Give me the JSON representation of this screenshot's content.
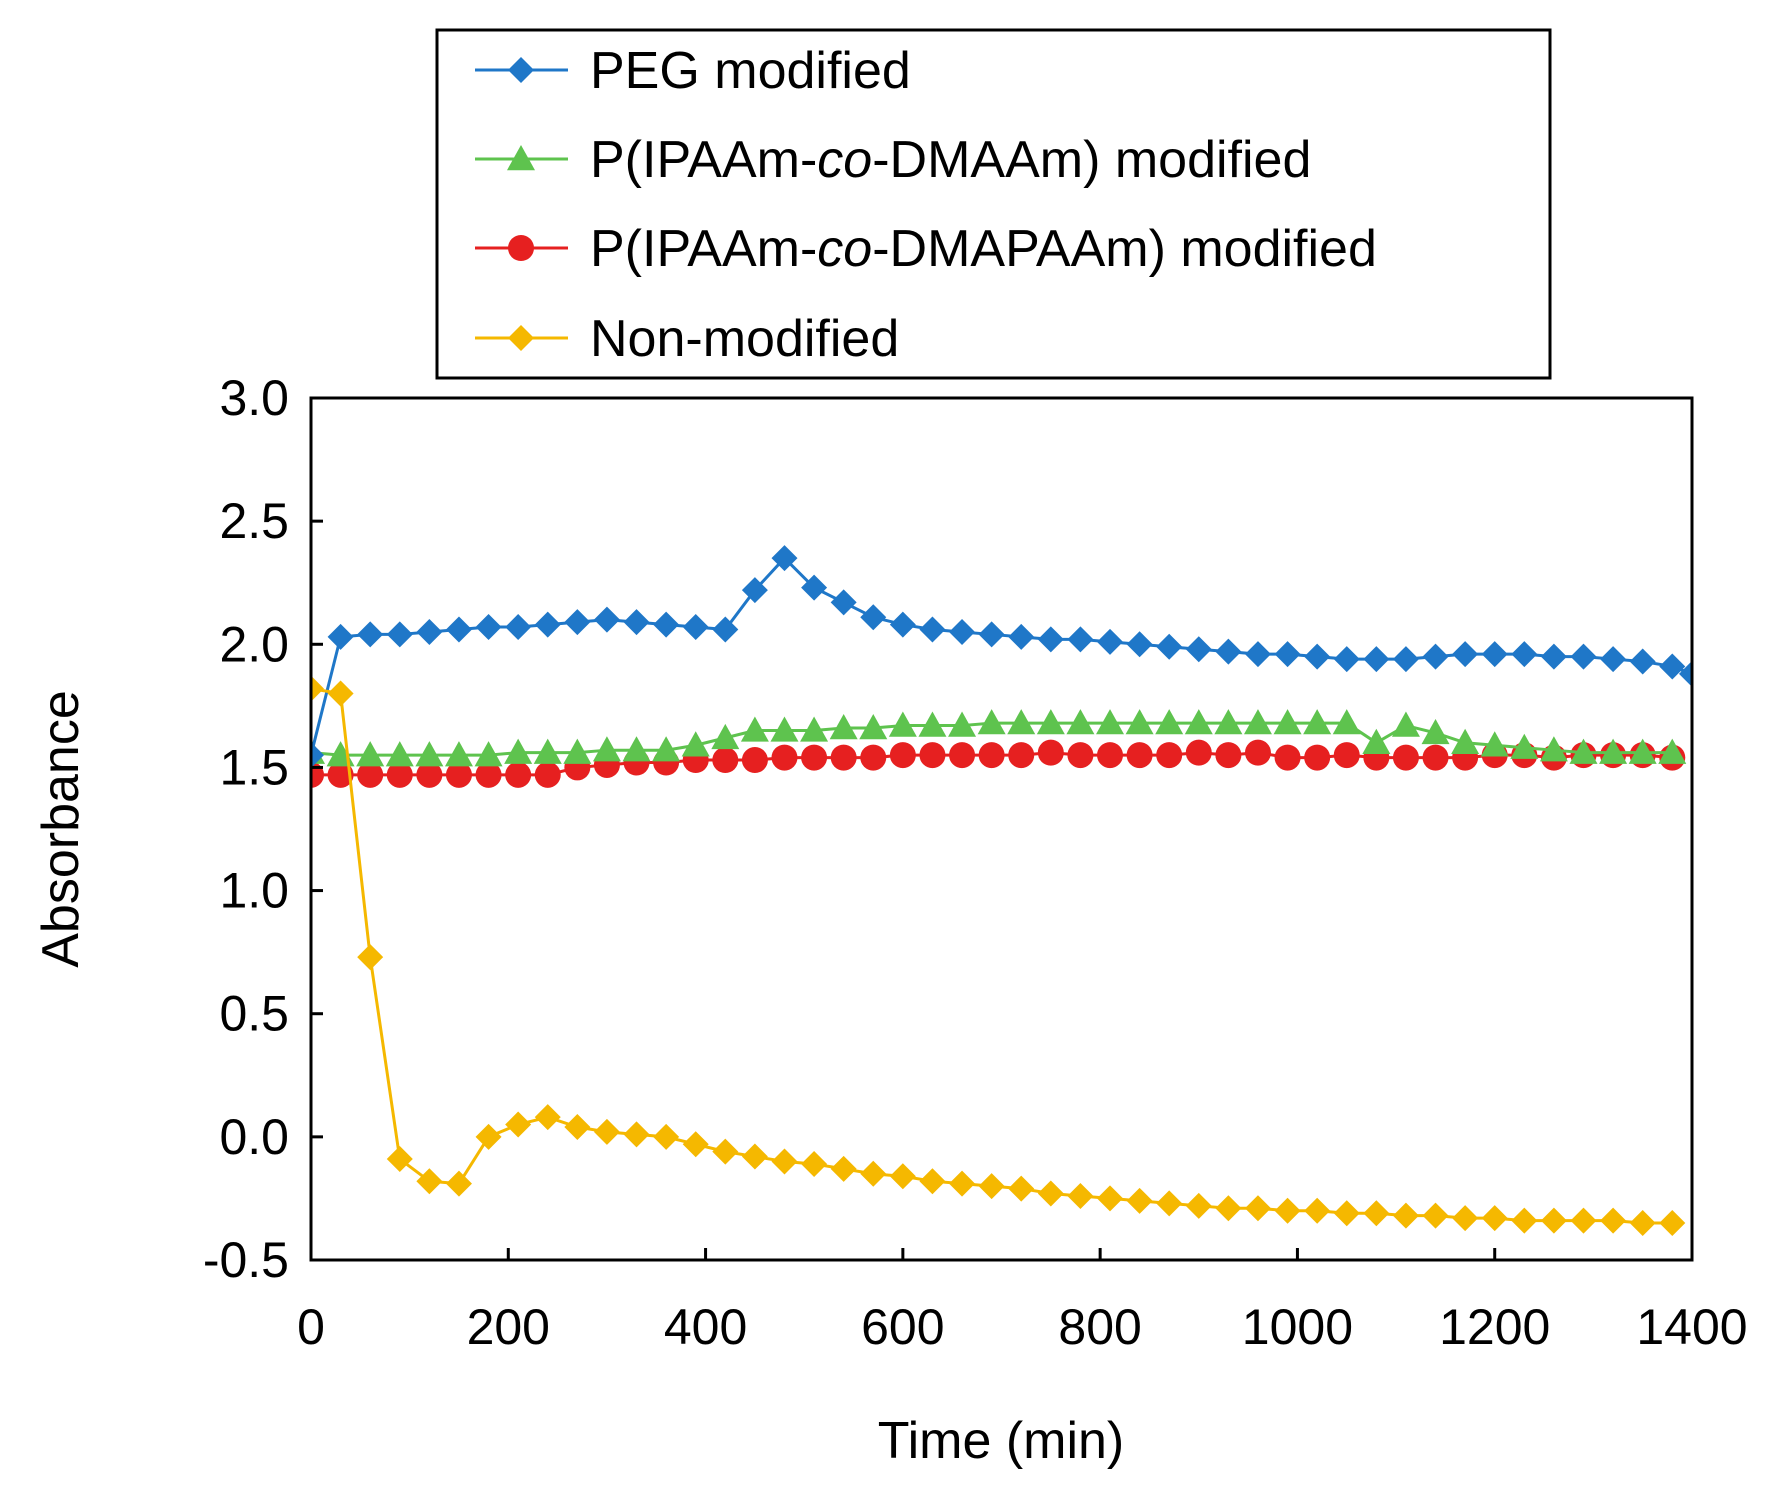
{
  "chart_data": {
    "type": "line",
    "title": "",
    "xlabel": "Time (min)",
    "ylabel": "Absorbance",
    "xlim": [
      0,
      1400
    ],
    "ylim": [
      -0.5,
      3.0
    ],
    "xticks": [
      0,
      200,
      400,
      600,
      800,
      1000,
      1200,
      1400
    ],
    "yticks": [
      -0.5,
      0.0,
      0.5,
      1.0,
      1.5,
      2.0,
      2.5,
      3.0
    ],
    "xtick_labels": [
      "0",
      "200",
      "400",
      "600",
      "800",
      "1000",
      "1200",
      "1400"
    ],
    "ytick_labels": [
      "-0.5",
      "0.0",
      "0.5",
      "1.0",
      "1.5",
      "2.0",
      "2.5",
      "3.0"
    ],
    "grid": false,
    "legend_position": "top",
    "series": [
      {
        "name": "PEG modified",
        "legend": {
          "prefix": "PEG modified",
          "italic": "",
          "suffix": ""
        },
        "color": "#1f77c8",
        "marker": "diamond",
        "x": [
          0,
          30,
          60,
          90,
          120,
          150,
          180,
          210,
          240,
          270,
          300,
          330,
          360,
          390,
          420,
          450,
          480,
          510,
          540,
          570,
          600,
          630,
          660,
          690,
          720,
          750,
          780,
          810,
          840,
          870,
          900,
          930,
          960,
          990,
          1020,
          1050,
          1080,
          1110,
          1140,
          1170,
          1200,
          1230,
          1260,
          1290,
          1320,
          1350,
          1380,
          1400
        ],
        "y": [
          1.55,
          2.03,
          2.04,
          2.04,
          2.05,
          2.06,
          2.07,
          2.07,
          2.08,
          2.09,
          2.1,
          2.09,
          2.08,
          2.07,
          2.06,
          2.22,
          2.35,
          2.23,
          2.17,
          2.11,
          2.08,
          2.06,
          2.05,
          2.04,
          2.03,
          2.02,
          2.02,
          2.01,
          2.0,
          1.99,
          1.98,
          1.97,
          1.96,
          1.96,
          1.95,
          1.94,
          1.94,
          1.94,
          1.95,
          1.96,
          1.96,
          1.96,
          1.95,
          1.95,
          1.94,
          1.93,
          1.91,
          1.88
        ]
      },
      {
        "name": "P(IPAAm-co-DMAAm) modified",
        "legend": {
          "prefix": "P(IPAAm-",
          "italic": "co",
          "suffix": "-DMAAm) modified"
        },
        "color": "#5ec34e",
        "marker": "triangle",
        "x": [
          0,
          30,
          60,
          90,
          120,
          150,
          180,
          210,
          240,
          270,
          300,
          330,
          360,
          390,
          420,
          450,
          480,
          510,
          540,
          570,
          600,
          630,
          660,
          690,
          720,
          750,
          780,
          810,
          840,
          870,
          900,
          930,
          960,
          990,
          1020,
          1050,
          1080,
          1110,
          1140,
          1170,
          1200,
          1230,
          1260,
          1290,
          1320,
          1350,
          1380
        ],
        "y": [
          1.56,
          1.55,
          1.55,
          1.55,
          1.55,
          1.55,
          1.55,
          1.56,
          1.56,
          1.56,
          1.57,
          1.57,
          1.57,
          1.59,
          1.62,
          1.65,
          1.65,
          1.65,
          1.66,
          1.66,
          1.67,
          1.67,
          1.67,
          1.68,
          1.68,
          1.68,
          1.68,
          1.68,
          1.68,
          1.68,
          1.68,
          1.68,
          1.68,
          1.68,
          1.68,
          1.68,
          1.6,
          1.67,
          1.64,
          1.6,
          1.59,
          1.58,
          1.57,
          1.56,
          1.56,
          1.56,
          1.56
        ]
      },
      {
        "name": "P(IPAAm-co-DMAPAAm) modified",
        "legend": {
          "prefix": "P(IPAAm-",
          "italic": "co",
          "suffix": "-DMAPAAm) modified"
        },
        "color": "#e62020",
        "marker": "circle",
        "x": [
          0,
          30,
          60,
          90,
          120,
          150,
          180,
          210,
          240,
          270,
          300,
          330,
          360,
          390,
          420,
          450,
          480,
          510,
          540,
          570,
          600,
          630,
          660,
          690,
          720,
          750,
          780,
          810,
          840,
          870,
          900,
          930,
          960,
          990,
          1020,
          1050,
          1080,
          1110,
          1140,
          1170,
          1200,
          1230,
          1260,
          1290,
          1320,
          1350,
          1380
        ],
        "y": [
          1.47,
          1.47,
          1.47,
          1.47,
          1.47,
          1.47,
          1.47,
          1.47,
          1.47,
          1.5,
          1.51,
          1.52,
          1.52,
          1.53,
          1.53,
          1.53,
          1.54,
          1.54,
          1.54,
          1.54,
          1.55,
          1.55,
          1.55,
          1.55,
          1.55,
          1.56,
          1.55,
          1.55,
          1.55,
          1.55,
          1.56,
          1.55,
          1.56,
          1.54,
          1.54,
          1.55,
          1.54,
          1.54,
          1.54,
          1.54,
          1.55,
          1.55,
          1.54,
          1.55,
          1.55,
          1.55,
          1.54
        ]
      },
      {
        "name": "Non-modified",
        "legend": {
          "prefix": "Non-modified",
          "italic": "",
          "suffix": ""
        },
        "color": "#f5b800",
        "marker": "diamond",
        "x": [
          0,
          30,
          60,
          90,
          120,
          150,
          180,
          210,
          240,
          270,
          300,
          330,
          360,
          390,
          420,
          450,
          480,
          510,
          540,
          570,
          600,
          630,
          660,
          690,
          720,
          750,
          780,
          810,
          840,
          870,
          900,
          930,
          960,
          990,
          1020,
          1050,
          1080,
          1110,
          1140,
          1170,
          1200,
          1230,
          1260,
          1290,
          1320,
          1350,
          1380
        ],
        "y": [
          1.82,
          1.8,
          0.73,
          -0.09,
          -0.18,
          -0.19,
          0.0,
          0.05,
          0.08,
          0.04,
          0.02,
          0.01,
          0.0,
          -0.03,
          -0.06,
          -0.08,
          -0.1,
          -0.11,
          -0.13,
          -0.15,
          -0.16,
          -0.18,
          -0.19,
          -0.2,
          -0.21,
          -0.23,
          -0.24,
          -0.25,
          -0.26,
          -0.27,
          -0.28,
          -0.29,
          -0.29,
          -0.3,
          -0.3,
          -0.31,
          -0.31,
          -0.32,
          -0.32,
          -0.33,
          -0.33,
          -0.34,
          -0.34,
          -0.34,
          -0.34,
          -0.35,
          -0.35
        ]
      }
    ]
  }
}
